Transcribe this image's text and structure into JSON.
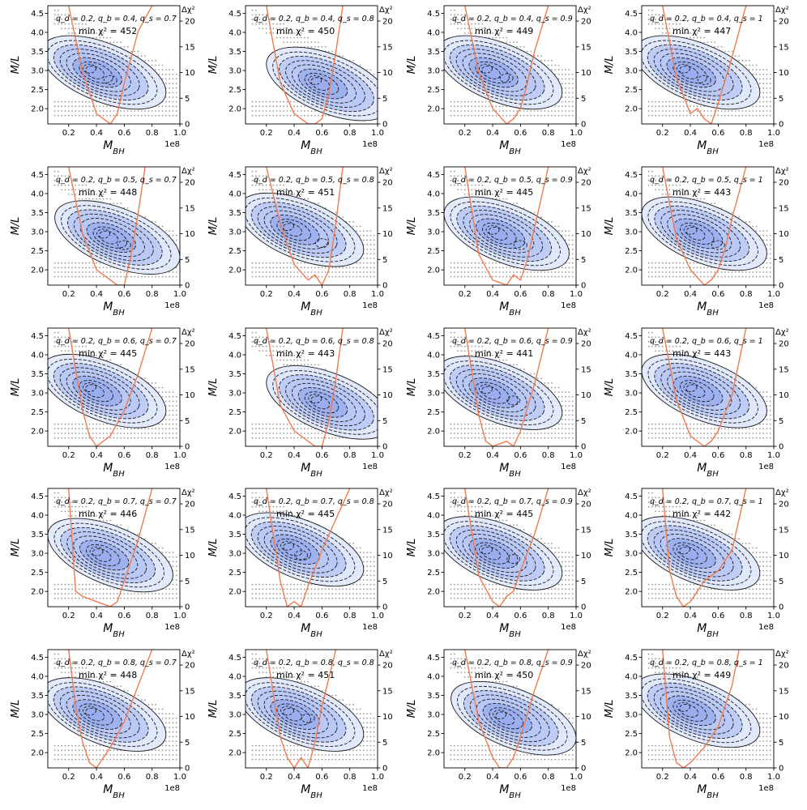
{
  "figure": {
    "title": "",
    "xlabel": "M_BH",
    "ylabel": "M/L",
    "right_label": "Δχ²",
    "x_offset_label": "1e8",
    "x_ticks": [
      "0.2",
      "0.4",
      "0.6",
      "0.8",
      "1.0"
    ],
    "y_ticks": [
      "2.0",
      "2.5",
      "3.0",
      "3.5",
      "4.0",
      "4.5"
    ],
    "right_ticks": [
      "0",
      "5",
      "10",
      "15",
      "20"
    ],
    "colors": {
      "contour_fill_light": "#dfe8fb",
      "contour_fill_mid": "#b8c8f5",
      "contour_fill_dark": "#9aaeee",
      "contour_line": "#1a1a1a",
      "curve": "#f07b4f",
      "grid_dots": "#9a9a9a"
    }
  },
  "chart_data": [
    {
      "type": "contour",
      "panel": "r1c1",
      "row": 1,
      "col": 1,
      "qd": 0.2,
      "qb": 0.4,
      "qs": 0.7,
      "label_params": "q_d = 0.2, q_b = 0.4, q_s = 0.7",
      "min_chi2": 452,
      "label_min": "min χ² = 452",
      "x_range": [
        0.05,
        1.0
      ],
      "y_range": [
        1.6,
        4.7
      ],
      "right_range": [
        0,
        23
      ],
      "peaks": [
        {
          "x": 0.35,
          "y": 3.05
        },
        {
          "x": 0.5,
          "y": 2.75
        }
      ],
      "curve": {
        "x": [
          0.2,
          0.3,
          0.4,
          0.45,
          0.5,
          0.55,
          0.6,
          0.7,
          0.8
        ],
        "d_chi2": [
          23,
          10,
          2,
          1,
          0,
          2,
          8,
          18,
          23
        ]
      }
    },
    {
      "type": "contour",
      "panel": "r1c2",
      "row": 1,
      "col": 2,
      "qd": 0.2,
      "qb": 0.4,
      "qs": 0.8,
      "label_params": "q_d = 0.2, q_b = 0.4, q_s = 0.8",
      "min_chi2": 450,
      "label_min": "min χ² = 450",
      "x_range": [
        0.05,
        1.0
      ],
      "y_range": [
        1.6,
        4.7
      ],
      "right_range": [
        0,
        23
      ],
      "peaks": [
        {
          "x": 0.55,
          "y": 2.75
        }
      ],
      "curve": {
        "x": [
          0.2,
          0.3,
          0.4,
          0.5,
          0.55,
          0.6,
          0.65,
          0.7,
          0.75
        ],
        "d_chi2": [
          23,
          8,
          2,
          0,
          0,
          1,
          6,
          14,
          23
        ]
      }
    },
    {
      "type": "contour",
      "panel": "r1c3",
      "row": 1,
      "col": 3,
      "qd": 0.2,
      "qb": 0.4,
      "qs": 0.9,
      "label_params": "q_d = 0.2, q_b = 0.4, q_s = 0.9",
      "min_chi2": 449,
      "label_min": "min χ² = 449",
      "x_range": [
        0.05,
        1.0
      ],
      "y_range": [
        1.6,
        4.7
      ],
      "right_range": [
        0,
        23
      ],
      "peaks": [
        {
          "x": 0.35,
          "y": 3.05
        },
        {
          "x": 0.5,
          "y": 2.8
        }
      ],
      "curve": {
        "x": [
          0.2,
          0.3,
          0.4,
          0.5,
          0.55,
          0.6,
          0.65,
          0.7,
          0.8
        ],
        "d_chi2": [
          23,
          10,
          3,
          0,
          1,
          3,
          8,
          14,
          23
        ]
      }
    },
    {
      "type": "contour",
      "panel": "r1c4",
      "row": 1,
      "col": 4,
      "qd": 0.2,
      "qb": 0.4,
      "qs": 1,
      "label_params": "q_d = 0.2, q_b = 0.4, q_s = 1",
      "min_chi2": 447,
      "label_min": "min χ² = 447",
      "x_range": [
        0.05,
        1.0
      ],
      "y_range": [
        1.6,
        4.7
      ],
      "right_range": [
        0,
        23
      ],
      "peaks": [
        {
          "x": 0.35,
          "y": 3.05
        },
        {
          "x": 0.5,
          "y": 2.75
        }
      ],
      "curve": {
        "x": [
          0.2,
          0.3,
          0.4,
          0.45,
          0.5,
          0.55,
          0.6,
          0.7,
          0.8
        ],
        "d_chi2": [
          23,
          9,
          2,
          3,
          1,
          0,
          4,
          13,
          23
        ]
      }
    },
    {
      "type": "contour",
      "panel": "r2c1",
      "row": 2,
      "col": 1,
      "qd": 0.2,
      "qb": 0.5,
      "qs": 0.7,
      "label_params": "q_d = 0.2, q_b = 0.5, q_s = 0.7",
      "min_chi2": 448,
      "label_min": "min χ² = 448",
      "x_range": [
        0.05,
        1.0
      ],
      "y_range": [
        1.6,
        4.7
      ],
      "right_range": [
        0,
        23
      ],
      "peaks": [
        {
          "x": 0.45,
          "y": 2.95
        },
        {
          "x": 0.6,
          "y": 2.65
        }
      ],
      "curve": {
        "x": [
          0.2,
          0.3,
          0.4,
          0.5,
          0.55,
          0.6,
          0.65,
          0.7,
          0.75
        ],
        "d_chi2": [
          23,
          10,
          3,
          1,
          0,
          0,
          6,
          14,
          23
        ]
      }
    },
    {
      "type": "contour",
      "panel": "r2c2",
      "row": 2,
      "col": 2,
      "qd": 0.2,
      "qb": 0.5,
      "qs": 0.8,
      "label_params": "q_d = 0.2, q_b = 0.5, q_s = 0.8",
      "min_chi2": 451,
      "label_min": "min χ² = 451",
      "x_range": [
        0.05,
        1.0
      ],
      "y_range": [
        1.6,
        4.7
      ],
      "right_range": [
        0,
        23
      ],
      "peaks": [
        {
          "x": 0.35,
          "y": 3.15
        },
        {
          "x": 0.6,
          "y": 2.7
        }
      ],
      "curve": {
        "x": [
          0.2,
          0.3,
          0.4,
          0.5,
          0.55,
          0.6,
          0.65,
          0.7,
          0.75
        ],
        "d_chi2": [
          23,
          12,
          4,
          1,
          2,
          0,
          3,
          12,
          23
        ]
      }
    },
    {
      "type": "contour",
      "panel": "r2c3",
      "row": 2,
      "col": 3,
      "qd": 0.2,
      "qb": 0.5,
      "qs": 0.9,
      "label_params": "q_d = 0.2, q_b = 0.5, q_s = 0.9",
      "min_chi2": 445,
      "label_min": "min χ² = 445",
      "x_range": [
        0.05,
        1.0
      ],
      "y_range": [
        1.6,
        4.7
      ],
      "right_range": [
        0,
        23
      ],
      "peaks": [
        {
          "x": 0.4,
          "y": 3.05
        },
        {
          "x": 0.6,
          "y": 2.65
        }
      ],
      "curve": {
        "x": [
          0.2,
          0.3,
          0.4,
          0.5,
          0.55,
          0.6,
          0.65,
          0.7,
          0.8
        ],
        "d_chi2": [
          23,
          6,
          1,
          0,
          2,
          1,
          5,
          11,
          23
        ]
      }
    },
    {
      "type": "contour",
      "panel": "r2c4",
      "row": 2,
      "col": 4,
      "qd": 0.2,
      "qb": 0.5,
      "qs": 1,
      "label_params": "q_d = 0.2, q_b = 0.5, q_s = 1",
      "min_chi2": 443,
      "label_min": "min χ² = 443",
      "x_range": [
        0.05,
        1.0
      ],
      "y_range": [
        1.6,
        4.7
      ],
      "right_range": [
        0,
        23
      ],
      "peaks": [
        {
          "x": 0.4,
          "y": 3.05
        },
        {
          "x": 0.6,
          "y": 2.65
        }
      ],
      "curve": {
        "x": [
          0.2,
          0.3,
          0.4,
          0.5,
          0.55,
          0.6,
          0.65,
          0.7,
          0.8
        ],
        "d_chi2": [
          23,
          9,
          3,
          0,
          1,
          3,
          7,
          13,
          23
        ]
      }
    },
    {
      "type": "contour",
      "panel": "r3c1",
      "row": 3,
      "col": 1,
      "qd": 0.2,
      "qb": 0.6,
      "qs": 0.7,
      "label_params": "q_d = 0.2, q_b = 0.6, q_s = 0.7",
      "min_chi2": 445,
      "label_min": "min χ² = 445",
      "x_range": [
        0.05,
        1.0
      ],
      "y_range": [
        1.6,
        4.7
      ],
      "right_range": [
        0,
        23
      ],
      "peaks": [
        {
          "x": 0.35,
          "y": 3.15
        }
      ],
      "curve": {
        "x": [
          0.2,
          0.3,
          0.35,
          0.4,
          0.5,
          0.6,
          0.7,
          0.8
        ],
        "d_chi2": [
          23,
          7,
          2,
          0,
          2,
          7,
          14,
          23
        ]
      }
    },
    {
      "type": "contour",
      "panel": "r3c2",
      "row": 3,
      "col": 2,
      "qd": 0.2,
      "qb": 0.6,
      "qs": 0.8,
      "label_params": "q_d = 0.2, q_b = 0.6, q_s = 0.8",
      "min_chi2": 443,
      "label_min": "min χ² = 443",
      "x_range": [
        0.05,
        1.0
      ],
      "y_range": [
        1.6,
        4.7
      ],
      "right_range": [
        0,
        23
      ],
      "peaks": [
        {
          "x": 0.55,
          "y": 2.85
        }
      ],
      "curve": {
        "x": [
          0.2,
          0.3,
          0.4,
          0.5,
          0.55,
          0.6,
          0.65,
          0.7,
          0.75
        ],
        "d_chi2": [
          23,
          8,
          3,
          1,
          0,
          0,
          5,
          13,
          23
        ]
      }
    },
    {
      "type": "contour",
      "panel": "r3c3",
      "row": 3,
      "col": 3,
      "qd": 0.2,
      "qb": 0.6,
      "qs": 0.9,
      "label_params": "q_d = 0.2, q_b = 0.6, q_s = 0.9",
      "min_chi2": 441,
      "label_min": "min χ² = 441",
      "x_range": [
        0.05,
        1.0
      ],
      "y_range": [
        1.6,
        4.7
      ],
      "right_range": [
        0,
        23
      ],
      "peaks": [
        {
          "x": 0.35,
          "y": 3.1
        },
        {
          "x": 0.55,
          "y": 2.8
        }
      ],
      "curve": {
        "x": [
          0.2,
          0.3,
          0.35,
          0.4,
          0.5,
          0.55,
          0.6,
          0.7,
          0.8
        ],
        "d_chi2": [
          23,
          6,
          1,
          0,
          1,
          0,
          3,
          12,
          23
        ]
      }
    },
    {
      "type": "contour",
      "panel": "r3c4",
      "row": 3,
      "col": 4,
      "qd": 0.2,
      "qb": 0.6,
      "qs": 1,
      "label_params": "q_d = 0.2, q_b = 0.6, q_s = 1",
      "min_chi2": 443,
      "label_min": "min χ² = 443",
      "x_range": [
        0.05,
        1.0
      ],
      "y_range": [
        1.6,
        4.7
      ],
      "right_range": [
        0,
        23
      ],
      "peaks": [
        {
          "x": 0.4,
          "y": 3.15
        }
      ],
      "curve": {
        "x": [
          0.2,
          0.3,
          0.4,
          0.5,
          0.55,
          0.6,
          0.7,
          0.8
        ],
        "d_chi2": [
          23,
          9,
          2,
          0,
          1,
          3,
          10,
          23
        ]
      }
    },
    {
      "type": "contour",
      "panel": "r4c1",
      "row": 4,
      "col": 1,
      "qd": 0.2,
      "qb": 0.7,
      "qs": 0.7,
      "label_params": "q_d = 0.2, q_b = 0.7, q_s = 0.7",
      "min_chi2": 446,
      "label_min": "min χ² = 446",
      "x_range": [
        0.05,
        1.0
      ],
      "y_range": [
        1.6,
        4.7
      ],
      "right_range": [
        0,
        23
      ],
      "peaks": [
        {
          "x": 0.4,
          "y": 3.05
        }
      ],
      "curve": {
        "x": [
          0.2,
          0.25,
          0.3,
          0.4,
          0.5,
          0.55,
          0.6,
          0.7,
          0.8
        ],
        "d_chi2": [
          23,
          3,
          2,
          1,
          0,
          1,
          5,
          13,
          23
        ]
      }
    },
    {
      "type": "contour",
      "panel": "r4c2",
      "row": 4,
      "col": 2,
      "qd": 0.2,
      "qb": 0.7,
      "qs": 0.8,
      "label_params": "q_d = 0.2, q_b = 0.7, q_s = 0.8",
      "min_chi2": 445,
      "label_min": "min χ² = 445",
      "x_range": [
        0.05,
        1.0
      ],
      "y_range": [
        1.6,
        4.7
      ],
      "right_range": [
        0,
        23
      ],
      "peaks": [
        {
          "x": 0.35,
          "y": 3.2
        },
        {
          "x": 0.45,
          "y": 2.95
        }
      ],
      "curve": {
        "x": [
          0.2,
          0.3,
          0.35,
          0.4,
          0.45,
          0.5,
          0.6,
          0.7,
          0.8
        ],
        "d_chi2": [
          23,
          5,
          0,
          1,
          0,
          4,
          11,
          17,
          23
        ]
      }
    },
    {
      "type": "contour",
      "panel": "r4c3",
      "row": 4,
      "col": 3,
      "qd": 0.2,
      "qb": 0.7,
      "qs": 0.9,
      "label_params": "q_d = 0.2, q_b = 0.7, q_s = 0.9",
      "min_chi2": 445,
      "label_min": "min χ² = 445",
      "x_range": [
        0.05,
        1.0
      ],
      "y_range": [
        1.6,
        4.7
      ],
      "right_range": [
        0,
        23
      ],
      "peaks": [
        {
          "x": 0.35,
          "y": 3.1
        },
        {
          "x": 0.55,
          "y": 2.85
        }
      ],
      "curve": {
        "x": [
          0.2,
          0.3,
          0.4,
          0.45,
          0.5,
          0.55,
          0.6,
          0.7,
          0.8
        ],
        "d_chi2": [
          23,
          6,
          1,
          0,
          2,
          3,
          7,
          14,
          23
        ]
      }
    },
    {
      "type": "contour",
      "panel": "r4c4",
      "row": 4,
      "col": 4,
      "qd": 0.2,
      "qb": 0.7,
      "qs": 1,
      "label_params": "q_d = 0.2, q_b = 0.7, q_s = 1",
      "min_chi2": 442,
      "label_min": "min χ² = 442",
      "x_range": [
        0.05,
        1.0
      ],
      "y_range": [
        1.6,
        4.7
      ],
      "right_range": [
        0,
        23
      ],
      "peaks": [
        {
          "x": 0.35,
          "y": 3.1
        }
      ],
      "curve": {
        "x": [
          0.2,
          0.25,
          0.3,
          0.35,
          0.4,
          0.5,
          0.6,
          0.7,
          0.8
        ],
        "d_chi2": [
          23,
          7,
          2,
          0,
          1,
          5,
          7,
          11,
          23
        ]
      }
    },
    {
      "type": "contour",
      "panel": "r5c1",
      "row": 5,
      "col": 1,
      "qd": 0.2,
      "qb": 0.8,
      "qs": 0.7,
      "label_params": "q_d = 0.2, q_b = 0.8, q_s = 0.7",
      "min_chi2": 448,
      "label_min": "min χ² = 448",
      "x_range": [
        0.05,
        1.0
      ],
      "y_range": [
        1.6,
        4.7
      ],
      "right_range": [
        0,
        23
      ],
      "peaks": [
        {
          "x": 0.35,
          "y": 3.1
        }
      ],
      "curve": {
        "x": [
          0.2,
          0.25,
          0.3,
          0.35,
          0.4,
          0.5,
          0.6,
          0.7,
          0.8
        ],
        "d_chi2": [
          23,
          12,
          5,
          1,
          0,
          4,
          9,
          16,
          23
        ]
      }
    },
    {
      "type": "contour",
      "panel": "r5c2",
      "row": 5,
      "col": 2,
      "qd": 0.2,
      "qb": 0.8,
      "qs": 0.8,
      "label_params": "q_d = 0.2, q_b = 0.8, q_s = 0.8",
      "min_chi2": 451,
      "label_min": "min χ² = 451",
      "x_range": [
        0.05,
        1.0
      ],
      "y_range": [
        1.6,
        4.7
      ],
      "right_range": [
        0,
        23
      ],
      "peaks": [
        {
          "x": 0.35,
          "y": 3.1
        },
        {
          "x": 0.5,
          "y": 2.9
        }
      ],
      "curve": {
        "x": [
          0.2,
          0.3,
          0.35,
          0.4,
          0.45,
          0.5,
          0.55,
          0.6,
          0.7
        ],
        "d_chi2": [
          23,
          6,
          2,
          0,
          2,
          0,
          5,
          12,
          23
        ]
      }
    },
    {
      "type": "contour",
      "panel": "r5c3",
      "row": 5,
      "col": 3,
      "qd": 0.2,
      "qb": 0.8,
      "qs": 0.9,
      "label_params": "q_d = 0.2, q_b = 0.8, q_s = 0.9",
      "min_chi2": 450,
      "label_min": "min χ² = 450",
      "x_range": [
        0.05,
        1.0
      ],
      "y_range": [
        1.6,
        4.7
      ],
      "right_range": [
        0,
        23
      ],
      "peaks": [
        {
          "x": 0.45,
          "y": 3.0
        }
      ],
      "curve": {
        "x": [
          0.2,
          0.3,
          0.4,
          0.45,
          0.5,
          0.55,
          0.6,
          0.7,
          0.8
        ],
        "d_chi2": [
          23,
          9,
          2,
          0,
          0,
          2,
          6,
          15,
          23
        ]
      }
    },
    {
      "type": "contour",
      "panel": "r5c4",
      "row": 5,
      "col": 4,
      "qd": 0.2,
      "qb": 0.8,
      "qs": 1,
      "label_params": "q_d = 0.2, q_b = 0.8, q_s = 1",
      "min_chi2": 449,
      "label_min": "min χ² = 449",
      "x_range": [
        0.05,
        1.0
      ],
      "y_range": [
        1.6,
        4.7
      ],
      "right_range": [
        0,
        23
      ],
      "peaks": [
        {
          "x": 0.35,
          "y": 3.2
        }
      ],
      "curve": {
        "x": [
          0.2,
          0.25,
          0.3,
          0.35,
          0.4,
          0.5,
          0.6,
          0.7,
          0.75
        ],
        "d_chi2": [
          23,
          6,
          1,
          0,
          1,
          4,
          8,
          16,
          23
        ]
      }
    }
  ]
}
